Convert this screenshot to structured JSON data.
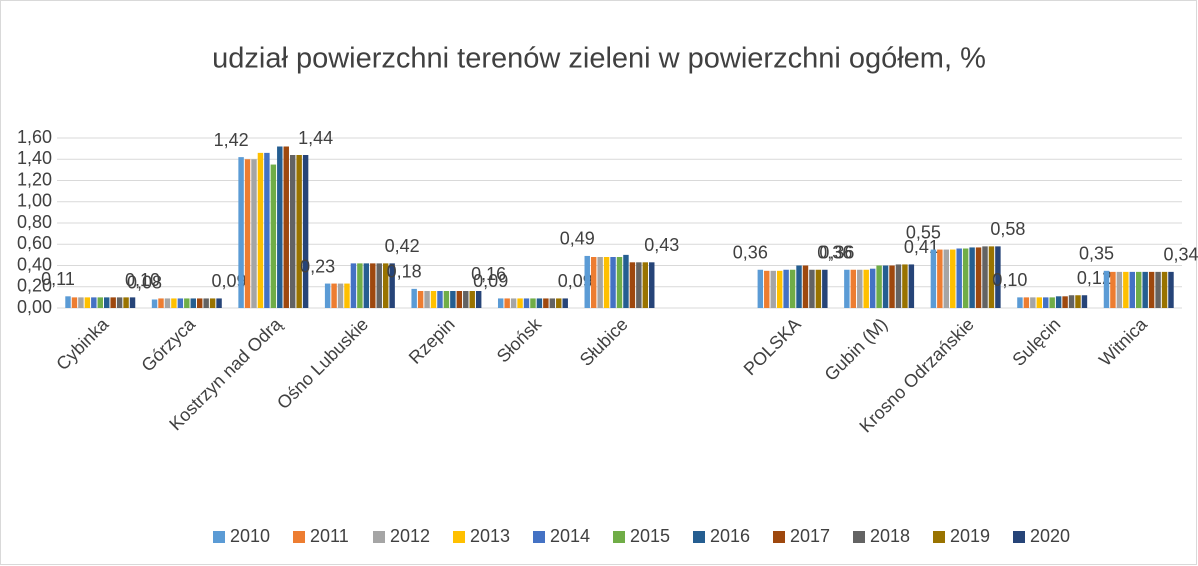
{
  "chart_data": {
    "type": "bar",
    "title": "udział powierzchni terenów zieleni w powierzchni ogółem, %",
    "categories": [
      "Cybinka",
      "Górzyca",
      "Kostrzyn nad Odrą",
      "Ośno Lubuskie",
      "Rzepin",
      "Słońsk",
      "Słubice",
      null,
      "POLSKA",
      "Gubin (M)",
      "Krosno Odrzańskie",
      "Sulęcin",
      "Witnica"
    ],
    "ylim": [
      0,
      1.6
    ],
    "yticks": [
      {
        "value": 0,
        "label": "0,00"
      },
      {
        "value": 0.2,
        "label": "0,20"
      },
      {
        "value": 0.4,
        "label": "0,40"
      },
      {
        "value": 0.6,
        "label": "0,60"
      },
      {
        "value": 0.8,
        "label": "0,80"
      },
      {
        "value": 1.0,
        "label": "1,00"
      },
      {
        "value": 1.2,
        "label": "1,20"
      },
      {
        "value": 1.4,
        "label": "1,40"
      },
      {
        "value": 1.6,
        "label": "1,60"
      }
    ],
    "grid": true,
    "legend": "bottom",
    "series": [
      {
        "name": "2010",
        "color": "#5b9bd5",
        "values": [
          0.11,
          0.08,
          1.42,
          0.23,
          0.18,
          0.09,
          0.49,
          null,
          0.36,
          0.36,
          0.55,
          0.1,
          0.35
        ],
        "value_labels": [
          "0,11",
          "0,08",
          "1,42",
          "0,23",
          "0,18",
          "0,09",
          "0,49",
          null,
          "0,36",
          "0,36",
          "0,55",
          "0,10",
          "0,35"
        ]
      },
      {
        "name": "2011",
        "color": "#ed7d31",
        "values": [
          0.1,
          0.09,
          1.4,
          0.23,
          0.16,
          0.09,
          0.48,
          null,
          0.35,
          0.36,
          0.55,
          0.1,
          0.34
        ]
      },
      {
        "name": "2012",
        "color": "#a5a5a5",
        "values": [
          0.1,
          0.09,
          1.4,
          0.23,
          0.16,
          0.09,
          0.48,
          null,
          0.35,
          0.36,
          0.55,
          0.1,
          0.34
        ]
      },
      {
        "name": "2013",
        "color": "#ffc000",
        "values": [
          0.1,
          0.09,
          1.46,
          0.23,
          0.16,
          0.09,
          0.48,
          null,
          0.35,
          0.36,
          0.55,
          0.1,
          0.34
        ]
      },
      {
        "name": "2014",
        "color": "#4472c4",
        "values": [
          0.1,
          0.09,
          1.46,
          0.42,
          0.16,
          0.09,
          0.48,
          null,
          0.36,
          0.37,
          0.56,
          0.1,
          0.34
        ]
      },
      {
        "name": "2015",
        "color": "#70ad47",
        "values": [
          0.1,
          0.09,
          1.35,
          0.42,
          0.16,
          0.09,
          0.48,
          null,
          0.36,
          0.4,
          0.56,
          0.1,
          0.34
        ]
      },
      {
        "name": "2016",
        "color": "#255e91",
        "values": [
          0.1,
          0.09,
          1.52,
          0.42,
          0.16,
          0.09,
          0.5,
          null,
          0.4,
          0.4,
          0.57,
          0.11,
          0.34
        ]
      },
      {
        "name": "2017",
        "color": "#9e480e",
        "values": [
          0.1,
          0.09,
          1.52,
          0.42,
          0.16,
          0.09,
          0.43,
          null,
          0.4,
          0.4,
          0.57,
          0.11,
          0.34
        ]
      },
      {
        "name": "2018",
        "color": "#636363",
        "values": [
          0.1,
          0.09,
          1.44,
          0.42,
          0.16,
          0.09,
          0.43,
          null,
          0.36,
          0.41,
          0.58,
          0.12,
          0.34
        ]
      },
      {
        "name": "2019",
        "color": "#997300",
        "values": [
          0.1,
          0.09,
          1.44,
          0.42,
          0.16,
          0.09,
          0.43,
          null,
          0.36,
          0.41,
          0.58,
          0.12,
          0.34
        ]
      },
      {
        "name": "2020",
        "color": "#264478",
        "values": [
          0.1,
          0.09,
          1.44,
          0.42,
          0.16,
          0.09,
          0.43,
          null,
          0.36,
          0.41,
          0.58,
          0.12,
          0.34
        ],
        "value_labels": [
          "0,10",
          "0,09",
          "1,44",
          "0,42",
          "0,16",
          "0,09",
          "0,43",
          null,
          "0,36",
          "0,41",
          "0,58",
          "0,12",
          "0,34"
        ]
      }
    ]
  }
}
